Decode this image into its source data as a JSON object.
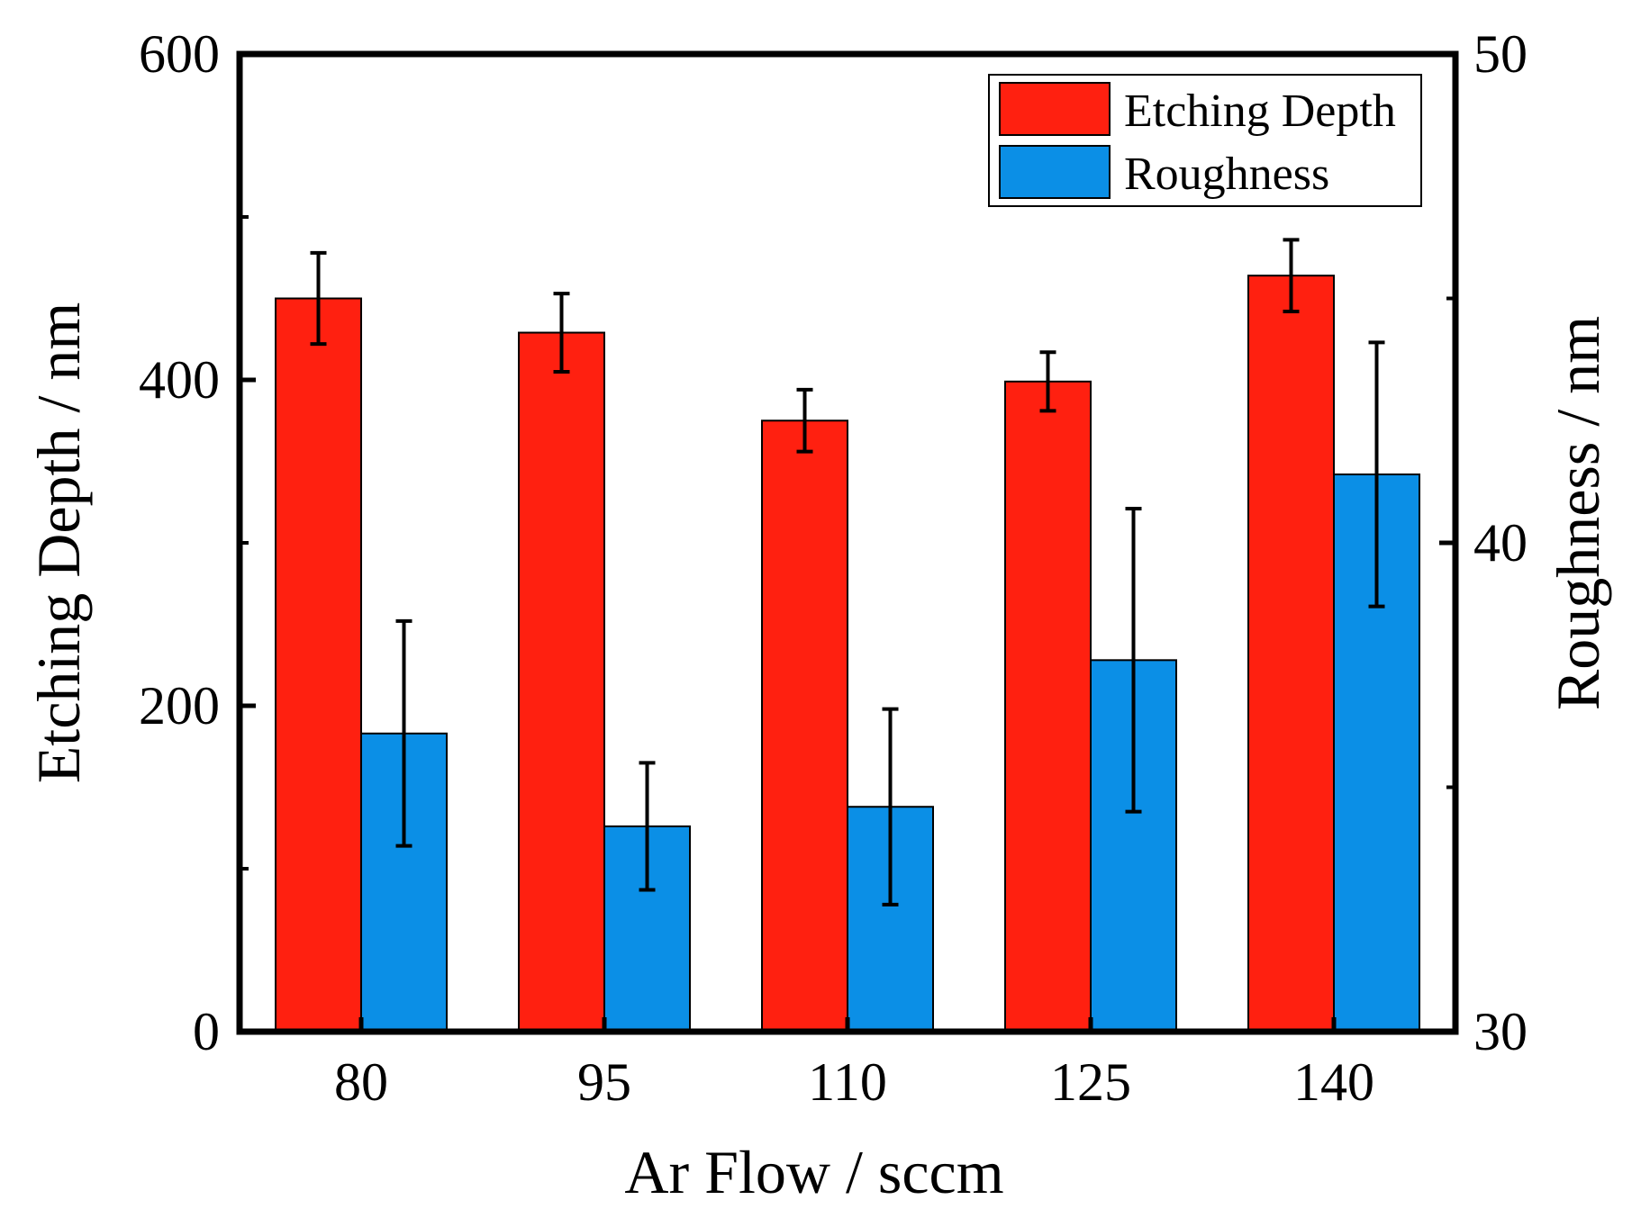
{
  "chart_data": {
    "type": "bar",
    "categories": [
      "80",
      "95",
      "110",
      "125",
      "140"
    ],
    "series": [
      {
        "name": "Etching Depth",
        "axis": "left",
        "color": "#ff2010",
        "values": [
          450,
          429,
          375,
          399,
          464
        ],
        "errors": [
          28,
          24,
          19,
          18,
          22
        ]
      },
      {
        "name": "Roughness",
        "axis": "right",
        "color": "#0b8fe6",
        "values": [
          36.1,
          34.2,
          34.6,
          37.6,
          41.4
        ],
        "errors": [
          2.3,
          1.3,
          2.0,
          3.1,
          2.7
        ]
      }
    ],
    "xlabel": "Ar Flow / sccm",
    "ylabel_left": "Etching Depth / nm",
    "ylabel_right": "Roughness / nm",
    "ylim_left": [
      0,
      600
    ],
    "ylim_right": [
      30,
      50
    ],
    "left_ticks": [
      "0",
      "200",
      "400",
      "600"
    ],
    "left_ticks_values": [
      0,
      200,
      400,
      600
    ],
    "left_minor_values": [
      100,
      300,
      500
    ],
    "right_ticks": [
      "30",
      "40",
      "50"
    ],
    "right_ticks_values": [
      30,
      40,
      50
    ],
    "right_minor_values": [
      35,
      45
    ],
    "legend_position": "top-right",
    "grid": false
  }
}
